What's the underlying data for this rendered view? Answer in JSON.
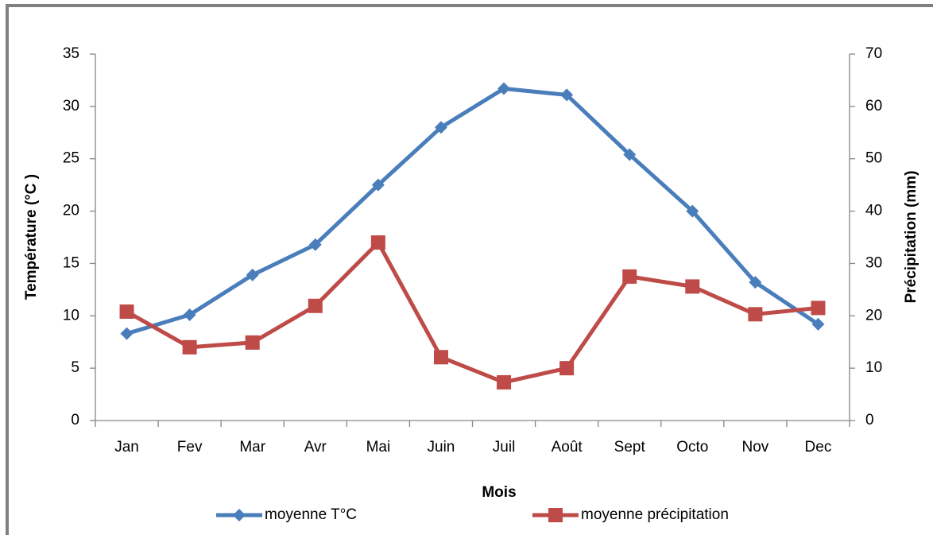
{
  "chart_data": {
    "type": "line",
    "x_label": "Mois",
    "y_label": "Température (°C )",
    "y2_label": "Précipitation (mm)",
    "categories": [
      "Jan",
      "Fev",
      "Mar",
      "Avr",
      "Mai",
      "Juin",
      "Juil",
      "Août",
      "Sept",
      "Octo",
      "Nov",
      "Dec"
    ],
    "series": [
      {
        "name": "moyenne T°C",
        "color": "#4a7ebb",
        "marker": "diamond",
        "values": [
          8.3,
          10.1,
          13.9,
          16.8,
          22.5,
          28.0,
          31.7,
          31.1,
          25.4,
          20.0,
          13.2,
          9.2
        ]
      },
      {
        "name": "moyenne précipitation",
        "color": "#be4b48",
        "marker": "square",
        "axis": "y2",
        "values": [
          20.8,
          14.0,
          14.9,
          21.9,
          34.0,
          12.1,
          7.3,
          10.0,
          27.5,
          25.6,
          20.3,
          21.5
        ]
      }
    ],
    "ylim": [
      0,
      35
    ],
    "yticks": [
      0,
      5,
      10,
      15,
      20,
      25,
      30,
      35
    ],
    "y2lim": [
      0,
      70
    ],
    "y2ticks": [
      0,
      10,
      20,
      30,
      40,
      50,
      60,
      70
    ],
    "grid": false
  }
}
